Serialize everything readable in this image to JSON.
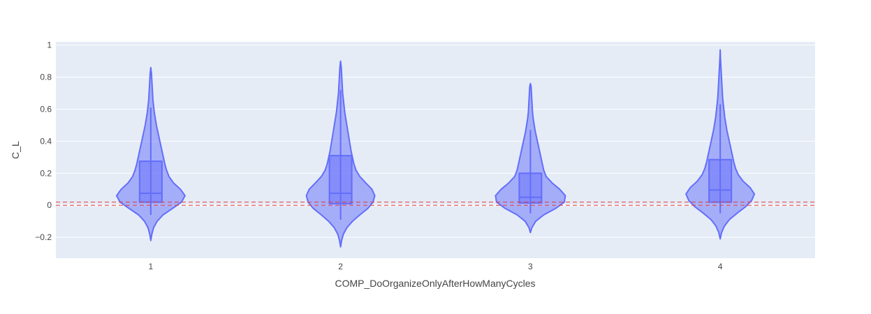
{
  "chart_data": {
    "type": "violin",
    "title": "",
    "xlabel": "COMP_DoOrganizeOnlyAfterHowManyCycles",
    "ylabel": "C_L",
    "categories": [
      "1",
      "2",
      "3",
      "4"
    ],
    "ylim": [
      -0.33,
      1.02
    ],
    "yticks": [
      {
        "value": 1,
        "label": "1"
      },
      {
        "value": 0.8,
        "label": "0.8"
      },
      {
        "value": 0.6,
        "label": "0.6"
      },
      {
        "value": 0.4,
        "label": "0.4"
      },
      {
        "value": 0.2,
        "label": "0.2"
      },
      {
        "value": 0,
        "label": "0"
      },
      {
        "value": -0.2,
        "label": "−0.2"
      }
    ],
    "grid": true,
    "colors": {
      "violin_fill": "#636efa",
      "violin_line": "#636efa",
      "plot_bg": "#e5ecf6",
      "reference_line": "#e8383d"
    },
    "reference_lines": [
      0.0,
      0.02
    ],
    "violins": [
      {
        "category": "1",
        "box": {
          "lower_whisker": -0.06,
          "q1": 0.02,
          "median": 0.075,
          "q3": 0.275,
          "upper_whisker": 0.61
        },
        "density": [
          [
            -0.22,
            0.0
          ],
          [
            -0.18,
            0.03
          ],
          [
            -0.14,
            0.08
          ],
          [
            -0.1,
            0.18
          ],
          [
            -0.06,
            0.35
          ],
          [
            -0.02,
            0.62
          ],
          [
            0.02,
            0.88
          ],
          [
            0.06,
            0.98
          ],
          [
            0.1,
            0.85
          ],
          [
            0.14,
            0.65
          ],
          [
            0.18,
            0.52
          ],
          [
            0.22,
            0.45
          ],
          [
            0.26,
            0.4
          ],
          [
            0.3,
            0.36
          ],
          [
            0.34,
            0.32
          ],
          [
            0.38,
            0.28
          ],
          [
            0.42,
            0.24
          ],
          [
            0.46,
            0.2
          ],
          [
            0.5,
            0.16
          ],
          [
            0.54,
            0.13
          ],
          [
            0.58,
            0.1
          ],
          [
            0.62,
            0.08
          ],
          [
            0.66,
            0.06
          ],
          [
            0.7,
            0.05
          ],
          [
            0.74,
            0.04
          ],
          [
            0.78,
            0.03
          ],
          [
            0.82,
            0.02
          ],
          [
            0.86,
            0.0
          ]
        ]
      },
      {
        "category": "2",
        "box": {
          "lower_whisker": -0.09,
          "q1": 0.01,
          "median": 0.075,
          "q3": 0.31,
          "upper_whisker": 0.72
        },
        "density": [
          [
            -0.26,
            0.0
          ],
          [
            -0.22,
            0.03
          ],
          [
            -0.18,
            0.08
          ],
          [
            -0.14,
            0.18
          ],
          [
            -0.1,
            0.34
          ],
          [
            -0.06,
            0.55
          ],
          [
            -0.02,
            0.78
          ],
          [
            0.02,
            0.93
          ],
          [
            0.06,
            0.98
          ],
          [
            0.1,
            0.9
          ],
          [
            0.14,
            0.72
          ],
          [
            0.18,
            0.55
          ],
          [
            0.22,
            0.44
          ],
          [
            0.26,
            0.38
          ],
          [
            0.3,
            0.34
          ],
          [
            0.34,
            0.3
          ],
          [
            0.38,
            0.27
          ],
          [
            0.42,
            0.24
          ],
          [
            0.46,
            0.21
          ],
          [
            0.5,
            0.18
          ],
          [
            0.54,
            0.15
          ],
          [
            0.58,
            0.12
          ],
          [
            0.62,
            0.1
          ],
          [
            0.66,
            0.08
          ],
          [
            0.7,
            0.06
          ],
          [
            0.74,
            0.05
          ],
          [
            0.78,
            0.04
          ],
          [
            0.82,
            0.03
          ],
          [
            0.86,
            0.02
          ],
          [
            0.9,
            0.0
          ]
        ]
      },
      {
        "category": "3",
        "box": {
          "lower_whisker": -0.05,
          "q1": 0.015,
          "median": 0.05,
          "q3": 0.2,
          "upper_whisker": 0.47
        },
        "density": [
          [
            -0.17,
            0.0
          ],
          [
            -0.14,
            0.04
          ],
          [
            -0.1,
            0.15
          ],
          [
            -0.06,
            0.38
          ],
          [
            -0.02,
            0.72
          ],
          [
            0.02,
            0.97
          ],
          [
            0.06,
            1.0
          ],
          [
            0.1,
            0.84
          ],
          [
            0.14,
            0.62
          ],
          [
            0.18,
            0.45
          ],
          [
            0.22,
            0.38
          ],
          [
            0.26,
            0.34
          ],
          [
            0.3,
            0.3
          ],
          [
            0.34,
            0.26
          ],
          [
            0.38,
            0.22
          ],
          [
            0.42,
            0.18
          ],
          [
            0.46,
            0.14
          ],
          [
            0.5,
            0.11
          ],
          [
            0.54,
            0.08
          ],
          [
            0.58,
            0.06
          ],
          [
            0.62,
            0.05
          ],
          [
            0.66,
            0.04
          ],
          [
            0.7,
            0.03
          ],
          [
            0.74,
            0.02
          ],
          [
            0.76,
            0.0
          ]
        ]
      },
      {
        "category": "4",
        "box": {
          "lower_whisker": -0.05,
          "q1": 0.02,
          "median": 0.095,
          "q3": 0.285,
          "upper_whisker": 0.63
        },
        "density": [
          [
            -0.21,
            0.0
          ],
          [
            -0.17,
            0.04
          ],
          [
            -0.13,
            0.12
          ],
          [
            -0.09,
            0.26
          ],
          [
            -0.05,
            0.48
          ],
          [
            -0.01,
            0.72
          ],
          [
            0.03,
            0.9
          ],
          [
            0.07,
            0.98
          ],
          [
            0.11,
            0.86
          ],
          [
            0.15,
            0.66
          ],
          [
            0.19,
            0.52
          ],
          [
            0.23,
            0.44
          ],
          [
            0.27,
            0.39
          ],
          [
            0.31,
            0.35
          ],
          [
            0.35,
            0.31
          ],
          [
            0.39,
            0.27
          ],
          [
            0.43,
            0.23
          ],
          [
            0.47,
            0.19
          ],
          [
            0.51,
            0.16
          ],
          [
            0.55,
            0.13
          ],
          [
            0.59,
            0.11
          ],
          [
            0.63,
            0.09
          ],
          [
            0.67,
            0.07
          ],
          [
            0.71,
            0.06
          ],
          [
            0.75,
            0.05
          ],
          [
            0.79,
            0.04
          ],
          [
            0.83,
            0.03
          ],
          [
            0.87,
            0.02
          ],
          [
            0.91,
            0.01
          ],
          [
            0.97,
            0.0
          ]
        ]
      }
    ]
  }
}
